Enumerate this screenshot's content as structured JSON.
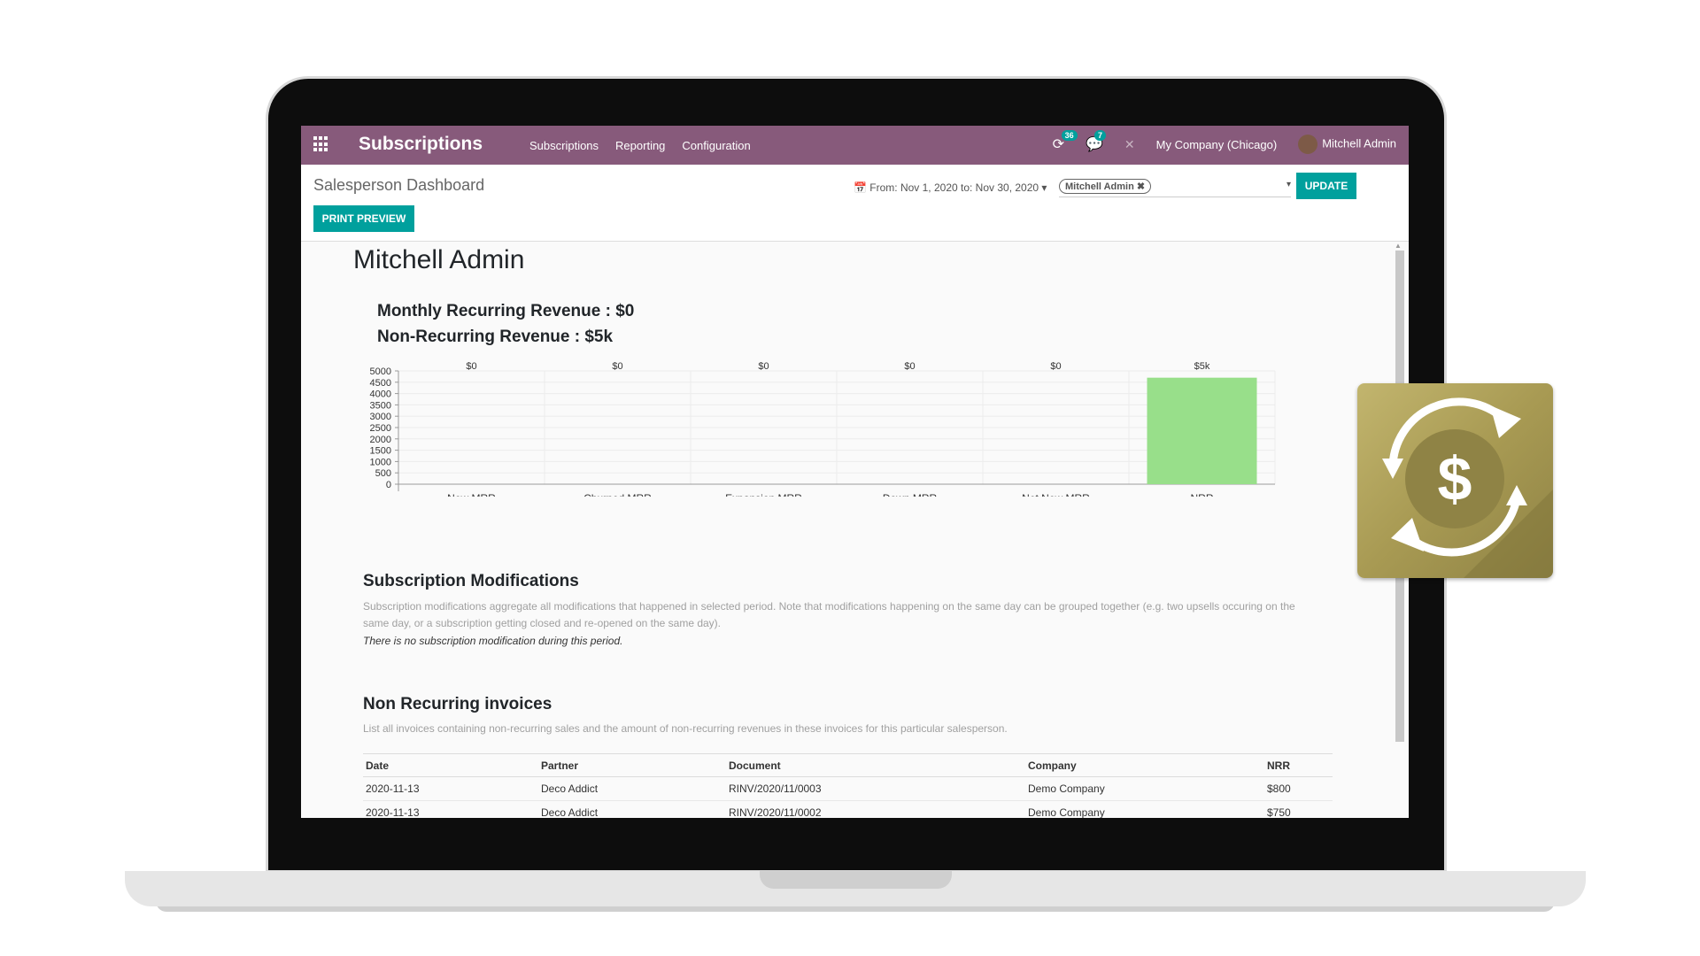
{
  "navbar": {
    "brand": "Subscriptions",
    "menu": [
      "Subscriptions",
      "Reporting",
      "Configuration"
    ],
    "activity_count": "36",
    "message_count": "7",
    "company": "My Company (Chicago)",
    "user": "Mitchell Admin"
  },
  "control_panel": {
    "title": "Salesperson Dashboard",
    "print_label": "PRINT PREVIEW",
    "date_range": "From: Nov 1, 2020 to: Nov 30, 2020",
    "salesperson_tag": "Mitchell Admin",
    "update_label": "UPDATE"
  },
  "report": {
    "salesperson": "Mitchell Admin",
    "mrr_line": "Monthly Recurring Revenue : $0",
    "nrr_line": "Non-Recurring Revenue : $5k",
    "modifications_title": "Subscription Modifications",
    "modifications_desc": "Subscription modifications aggregate all modifications that happened in selected period. Note that modifications happening on the same day can be grouped together (e.g. two upsells occuring on the same day, or a subscription getting closed and re-opened on the same day).",
    "modifications_empty": "There is no subscription modification during this period.",
    "invoices_title": "Non Recurring invoices",
    "invoices_desc": "List all invoices containing non-recurring sales and the amount of non-recurring revenues in these invoices for this particular salesperson."
  },
  "invoice_table": {
    "headers": [
      "Date",
      "Partner",
      "Document",
      "Company",
      "NRR"
    ],
    "rows": [
      [
        "2020-11-13",
        "Deco Addict",
        "RINV/2020/11/0003",
        "Demo Company",
        "$800"
      ],
      [
        "2020-11-13",
        "Deco Addict",
        "RINV/2020/11/0002",
        "Demo Company",
        "$750"
      ]
    ]
  },
  "colors": {
    "navbar": "#875a7b",
    "primary_button": "#00a09d",
    "bar_fill": "#98df8a"
  },
  "chart_data": {
    "type": "bar",
    "categories": [
      "New MRR",
      "Churned MRR",
      "Expansion MRR",
      "Down MRR",
      "Net New MRR",
      "NRR"
    ],
    "values": [
      0,
      0,
      0,
      0,
      0,
      4700
    ],
    "data_labels": [
      "$0",
      "$0",
      "$0",
      "$0",
      "$0",
      "$5k"
    ],
    "yticks": [
      0,
      500,
      1000,
      1500,
      2000,
      2500,
      3000,
      3500,
      4000,
      4500,
      5000
    ],
    "ylim": [
      0,
      5000
    ],
    "grid": true,
    "legend": "none"
  }
}
